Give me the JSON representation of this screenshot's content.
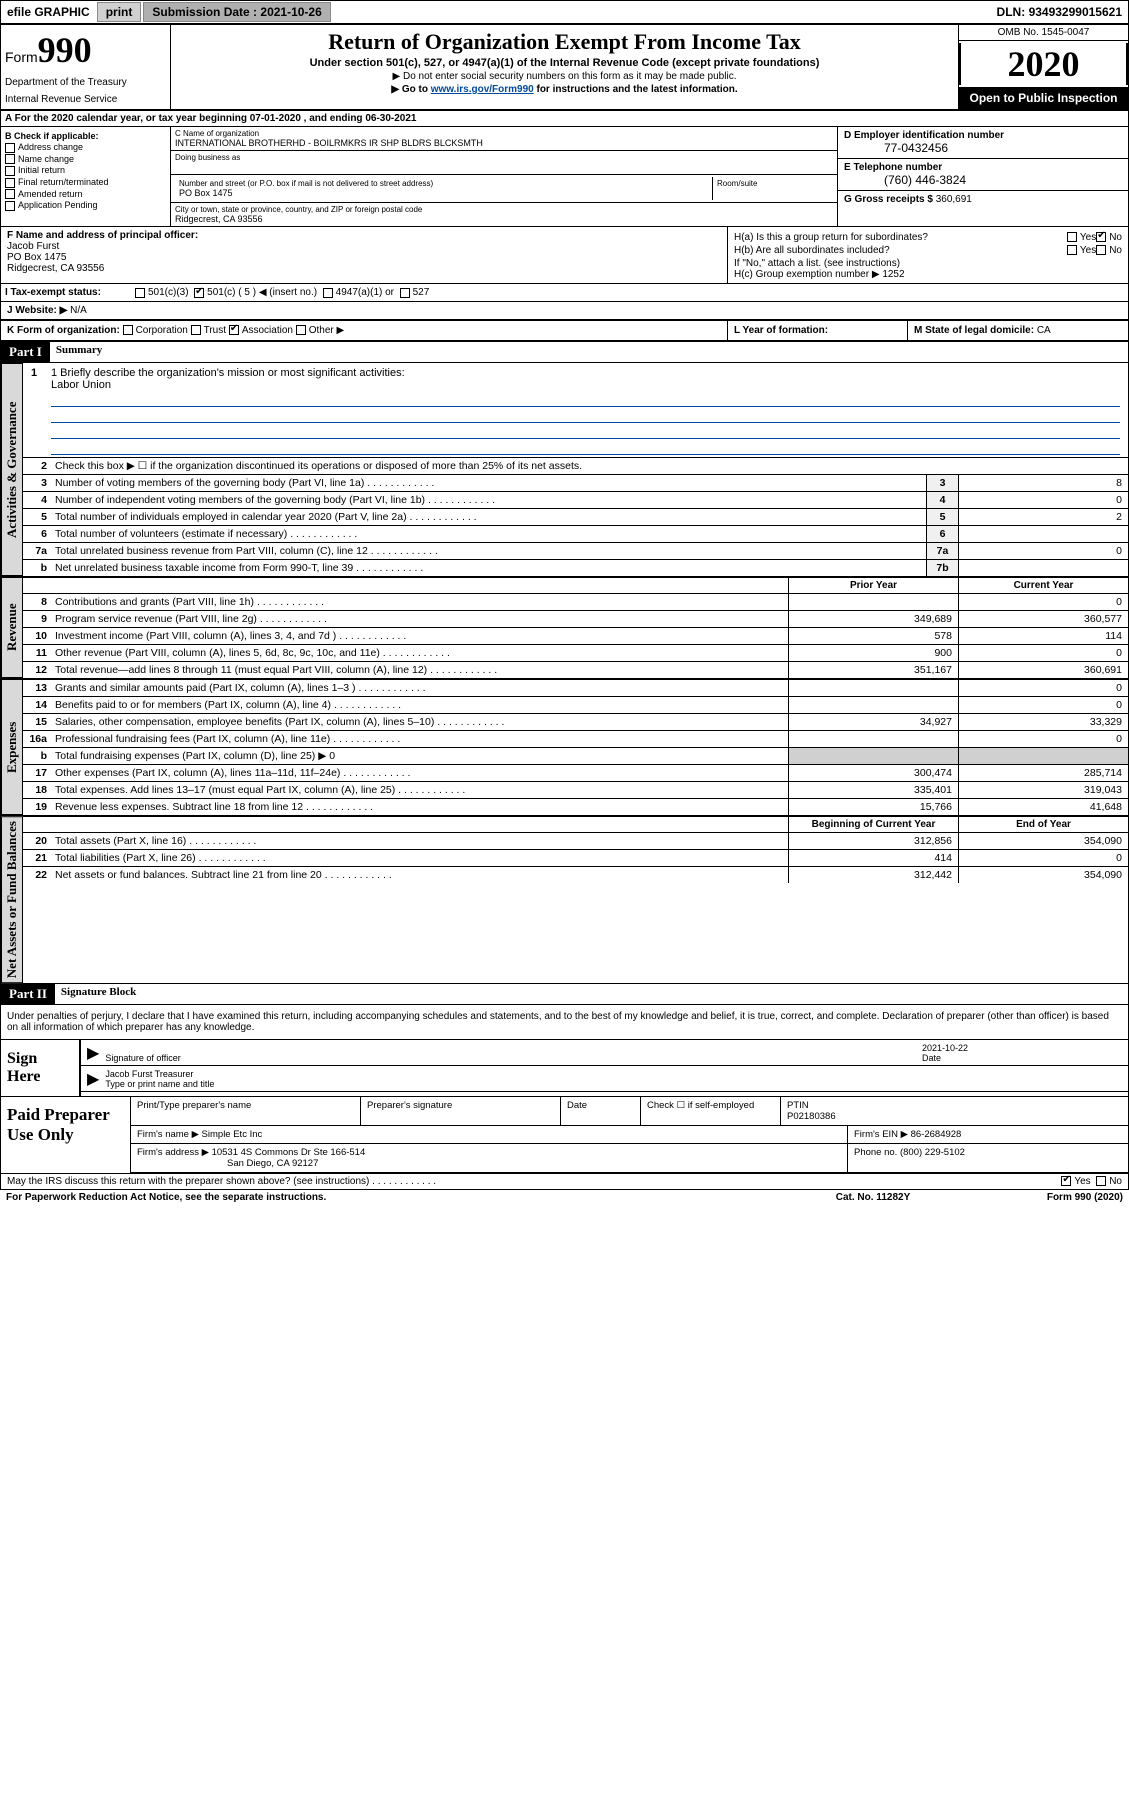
{
  "topbar": {
    "efile": "efile GRAPHIC",
    "print": "print",
    "submission_label": "Submission Date :",
    "submission_date": "2021-10-26",
    "dln_label": "DLN:",
    "dln": "93493299015621"
  },
  "header": {
    "form_label": "Form",
    "form_number": "990",
    "dept": "Department of the Treasury",
    "irs": "Internal Revenue Service",
    "title": "Return of Organization Exempt From Income Tax",
    "sub": "Under section 501(c), 527, or 4947(a)(1) of the Internal Revenue Code (except private foundations)",
    "note1": "▶ Do not enter social security numbers on this form as it may be made public.",
    "note2_pre": "▶ Go to ",
    "note2_link": "www.irs.gov/Form990",
    "note2_post": " for instructions and the latest information.",
    "omb": "OMB No. 1545-0047",
    "year": "2020",
    "open_public": "Open to Public Inspection"
  },
  "row_a": "A For the 2020 calendar year, or tax year beginning 07-01-2020    , and ending 06-30-2021",
  "col_b": {
    "title": "B Check if applicable:",
    "items": [
      "Address change",
      "Name change",
      "Initial return",
      "Final return/terminated",
      "Amended return",
      "Application Pending"
    ]
  },
  "col_c": {
    "name_label": "C Name of organization",
    "name": "INTERNATIONAL BROTHERHD - BOILRMKRS IR SHP BLDRS BLCKSMTH",
    "dba_label": "Doing business as",
    "street_label": "Number and street (or P.O. box if mail is not delivered to street address)",
    "room_label": "Room/suite",
    "street": "PO Box 1475",
    "city_label": "City or town, state or province, country, and ZIP or foreign postal code",
    "city": "Ridgecrest, CA  93556"
  },
  "col_d": {
    "ein_label": "D Employer identification number",
    "ein": "77-0432456",
    "phone_label": "E Telephone number",
    "phone": "(760) 446-3824",
    "gross_label": "G Gross receipts $",
    "gross": "360,691"
  },
  "col_f": {
    "label": "F Name and address of principal officer:",
    "name": "Jacob Furst",
    "street": "PO Box 1475",
    "city": "Ridgecrest, CA  93556"
  },
  "col_h": {
    "ha_label": "H(a)  Is this a group return for subordinates?",
    "hb_label": "H(b)  Are all subordinates included?",
    "hb_note": "If \"No,\" attach a list. (see instructions)",
    "hc_label": "H(c)  Group exemption number ▶",
    "hc_val": "1252",
    "yes": "Yes",
    "no": "No"
  },
  "status": {
    "label": "I  Tax-exempt status:",
    "opts": [
      "501(c)(3)",
      "501(c) ( 5 ) ◀ (insert no.)",
      "4947(a)(1) or",
      "527"
    ],
    "checked_idx": 1
  },
  "website": {
    "label": "J  Website: ▶",
    "val": "N/A"
  },
  "row_k": {
    "k_label": "K Form of organization:",
    "k_opts": [
      "Corporation",
      "Trust",
      "Association",
      "Other ▶"
    ],
    "k_checked_idx": 2,
    "l_label": "L Year of formation:",
    "m_label": "M State of legal domicile:",
    "m_val": "CA"
  },
  "part1": {
    "hdr": "Part I",
    "title": "Summary"
  },
  "mission": {
    "label": "1  Briefly describe the organization's mission or most significant activities:",
    "text": "Labor Union"
  },
  "governance_lines": [
    {
      "n": "2",
      "d": "Check this box ▶ ☐  if the organization discontinued its operations or disposed of more than 25% of its net assets."
    },
    {
      "n": "3",
      "d": "Number of voting members of the governing body (Part VI, line 1a)",
      "c": "3",
      "v": "8"
    },
    {
      "n": "4",
      "d": "Number of independent voting members of the governing body (Part VI, line 1b)",
      "c": "4",
      "v": "0"
    },
    {
      "n": "5",
      "d": "Total number of individuals employed in calendar year 2020 (Part V, line 2a)",
      "c": "5",
      "v": "2"
    },
    {
      "n": "6",
      "d": "Total number of volunteers (estimate if necessary)",
      "c": "6",
      "v": ""
    },
    {
      "n": "7a",
      "d": "Total unrelated business revenue from Part VIII, column (C), line 12",
      "c": "7a",
      "v": "0"
    },
    {
      "n": "b",
      "d": "Net unrelated business taxable income from Form 990-T, line 39",
      "c": "7b",
      "v": ""
    }
  ],
  "col_hdrs": {
    "prior": "Prior Year",
    "current": "Current Year",
    "bbal": "Beginning of Current Year",
    "ebal": "End of Year"
  },
  "revenue_lines": [
    {
      "n": "8",
      "d": "Contributions and grants (Part VIII, line 1h)",
      "p": "",
      "c": "0"
    },
    {
      "n": "9",
      "d": "Program service revenue (Part VIII, line 2g)",
      "p": "349,689",
      "c": "360,577"
    },
    {
      "n": "10",
      "d": "Investment income (Part VIII, column (A), lines 3, 4, and 7d )",
      "p": "578",
      "c": "114"
    },
    {
      "n": "11",
      "d": "Other revenue (Part VIII, column (A), lines 5, 6d, 8c, 9c, 10c, and 11e)",
      "p": "900",
      "c": "0"
    },
    {
      "n": "12",
      "d": "Total revenue—add lines 8 through 11 (must equal Part VIII, column (A), line 12)",
      "p": "351,167",
      "c": "360,691"
    }
  ],
  "expense_lines": [
    {
      "n": "13",
      "d": "Grants and similar amounts paid (Part IX, column (A), lines 1–3 )",
      "p": "",
      "c": "0"
    },
    {
      "n": "14",
      "d": "Benefits paid to or for members (Part IX, column (A), line 4)",
      "p": "",
      "c": "0"
    },
    {
      "n": "15",
      "d": "Salaries, other compensation, employee benefits (Part IX, column (A), lines 5–10)",
      "p": "34,927",
      "c": "33,329"
    },
    {
      "n": "16a",
      "d": "Professional fundraising fees (Part IX, column (A), line 11e)",
      "p": "",
      "c": "0"
    },
    {
      "n": "b",
      "d": "Total fundraising expenses (Part IX, column (D), line 25) ▶ 0",
      "p": "—",
      "c": "—"
    },
    {
      "n": "17",
      "d": "Other expenses (Part IX, column (A), lines 11a–11d, 11f–24e)",
      "p": "300,474",
      "c": "285,714"
    },
    {
      "n": "18",
      "d": "Total expenses. Add lines 13–17 (must equal Part IX, column (A), line 25)",
      "p": "335,401",
      "c": "319,043"
    },
    {
      "n": "19",
      "d": "Revenue less expenses. Subtract line 18 from line 12",
      "p": "15,766",
      "c": "41,648"
    }
  ],
  "balance_lines": [
    {
      "n": "20",
      "d": "Total assets (Part X, line 16)",
      "p": "312,856",
      "c": "354,090"
    },
    {
      "n": "21",
      "d": "Total liabilities (Part X, line 26)",
      "p": "414",
      "c": "0"
    },
    {
      "n": "22",
      "d": "Net assets or fund balances. Subtract line 21 from line 20",
      "p": "312,442",
      "c": "354,090"
    }
  ],
  "vtabs": {
    "gov": "Activities & Governance",
    "rev": "Revenue",
    "exp": "Expenses",
    "bal": "Net Assets or Fund Balances"
  },
  "part2": {
    "hdr": "Part II",
    "title": "Signature Block"
  },
  "sig_decl": "Under penalties of perjury, I declare that I have examined this return, including accompanying schedules and statements, and to the best of my knowledge and belief, it is true, correct, and complete. Declaration of preparer (other than officer) is based on all information of which preparer has any knowledge.",
  "sign_here": "Sign Here",
  "sig_officer_label": "Signature of officer",
  "sig_date_label": "Date",
  "sig_date": "2021-10-22",
  "sig_name": "Jacob Furst Treasurer",
  "sig_name_label": "Type or print name and title",
  "paid_prep": "Paid Preparer Use Only",
  "prep": {
    "name_label": "Print/Type preparer's name",
    "sig_label": "Preparer's signature",
    "date_label": "Date",
    "check_label": "Check ☐ if self-employed",
    "ptin_label": "PTIN",
    "ptin": "P02180386",
    "firm_name_label": "Firm's name   ▶",
    "firm_name": "Simple Etc Inc",
    "firm_ein_label": "Firm's EIN ▶",
    "firm_ein": "86-2684928",
    "firm_addr_label": "Firm's address ▶",
    "firm_addr1": "10531 4S Commons Dr Ste 166-514",
    "firm_addr2": "San Diego, CA  92127",
    "phone_label": "Phone no.",
    "phone": "(800) 229-5102"
  },
  "discuss": "May the IRS discuss this return with the preparer shown above? (see instructions)",
  "footer": {
    "pra": "For Paperwork Reduction Act Notice, see the separate instructions.",
    "cat": "Cat. No. 11282Y",
    "form": "Form 990 (2020)"
  }
}
